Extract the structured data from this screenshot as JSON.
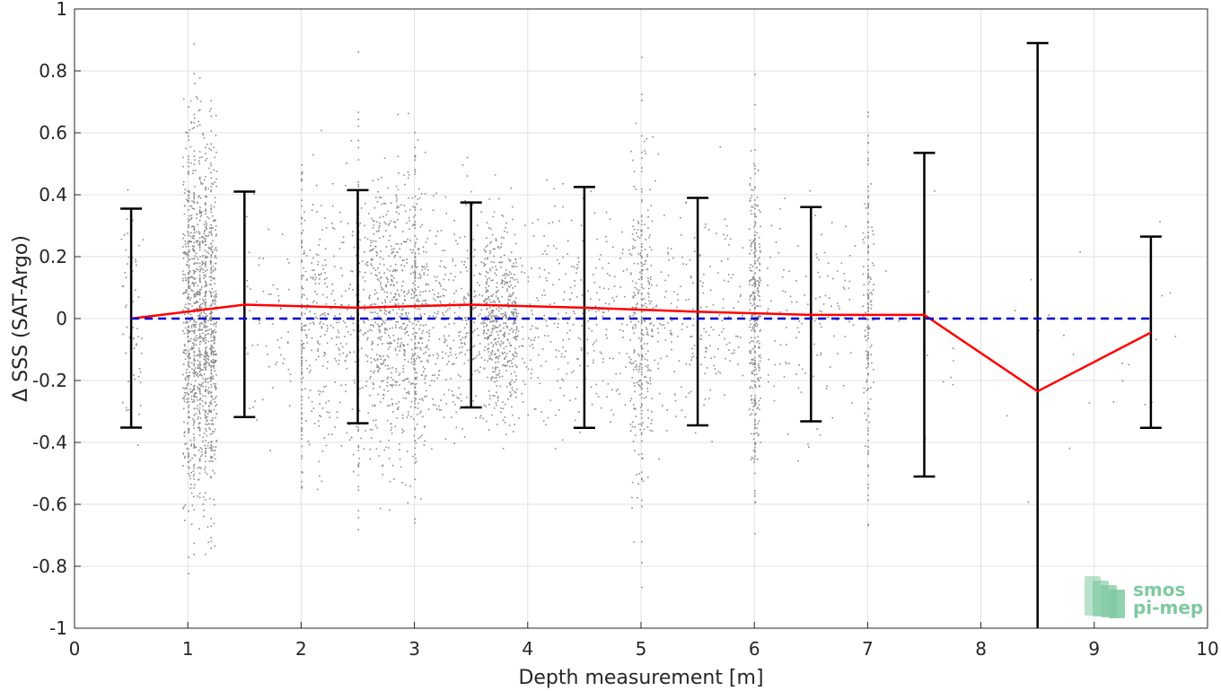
{
  "chart_data": {
    "type": "scatter",
    "xlabel": "Depth measurement [m]",
    "ylabel": "Δ SSS (SAT-Argo)",
    "xlim": [
      0,
      10
    ],
    "ylim": [
      -1,
      1
    ],
    "x_ticks": [
      "0",
      "1",
      "2",
      "3",
      "4",
      "5",
      "6",
      "7",
      "8",
      "9",
      "10"
    ],
    "y_ticks": [
      "1",
      "0.8",
      "0.6",
      "0.4",
      "0.2",
      "0",
      "-0.2",
      "-0.4",
      "-0.6",
      "-0.8",
      "-1"
    ],
    "grid": true,
    "scatter_color": "#8c8c8c",
    "scatter_clusters": [
      {
        "x_min": 0.4,
        "x_max": 0.6,
        "count": 60,
        "spread": 0.35
      },
      {
        "x_min": 0.95,
        "x_max": 1.25,
        "count": 900,
        "spread": 0.55
      },
      {
        "x_min": 1.5,
        "x_max": 1.9,
        "count": 60,
        "spread": 0.4
      },
      {
        "x_min": 2.0,
        "x_max": 2.6,
        "count": 350,
        "spread": 0.4
      },
      {
        "x_min": 2.6,
        "x_max": 3.1,
        "count": 700,
        "spread": 0.45
      },
      {
        "x_min": 3.1,
        "x_max": 3.6,
        "count": 300,
        "spread": 0.35
      },
      {
        "x_min": 3.6,
        "x_max": 3.9,
        "count": 500,
        "spread": 0.3
      },
      {
        "x_min": 3.9,
        "x_max": 4.9,
        "count": 300,
        "spread": 0.35
      },
      {
        "x_min": 4.9,
        "x_max": 5.1,
        "count": 250,
        "spread": 0.5
      },
      {
        "x_min": 5.1,
        "x_max": 5.9,
        "count": 200,
        "spread": 0.35
      },
      {
        "x_min": 5.95,
        "x_max": 6.05,
        "count": 250,
        "spread": 0.45
      },
      {
        "x_min": 6.1,
        "x_max": 6.9,
        "count": 120,
        "spread": 0.35
      },
      {
        "x_min": 6.95,
        "x_max": 7.05,
        "count": 80,
        "spread": 0.45
      },
      {
        "x_min": 7.1,
        "x_max": 10.0,
        "count": 35,
        "spread": 0.5
      }
    ],
    "vertical_streaks": [
      1.0,
      1.05,
      1.1,
      1.15,
      1.2,
      2.0,
      2.5,
      3.0,
      5.0,
      6.0,
      7.0
    ],
    "series": [
      {
        "name": "mean",
        "color": "#ff0000",
        "style": "solid",
        "x": [
          0.5,
          1.5,
          2.5,
          3.5,
          4.5,
          5.5,
          6.5,
          7.5,
          8.5,
          9.5
        ],
        "y": [
          0.0,
          0.045,
          0.035,
          0.045,
          0.035,
          0.022,
          0.012,
          0.012,
          -0.235,
          -0.045
        ]
      },
      {
        "name": "zero",
        "color": "#0000cc",
        "style": "dashed",
        "x": [
          0.5,
          9.5
        ],
        "y": [
          0,
          0
        ]
      }
    ],
    "error_bars": {
      "color": "#000000",
      "x": [
        0.5,
        1.5,
        2.5,
        3.5,
        4.5,
        5.5,
        6.5,
        7.5,
        8.5,
        9.5
      ],
      "upper": [
        0.355,
        0.41,
        0.415,
        0.375,
        0.425,
        0.39,
        0.36,
        0.535,
        0.89,
        0.265
      ],
      "lower": [
        -0.352,
        -0.318,
        -0.338,
        -0.287,
        -0.353,
        -0.345,
        -0.332,
        -0.51,
        -1.0,
        -0.353
      ]
    }
  },
  "logo": {
    "line1": "smos",
    "line2": "pi-mep",
    "color": "#7fc9a0"
  }
}
